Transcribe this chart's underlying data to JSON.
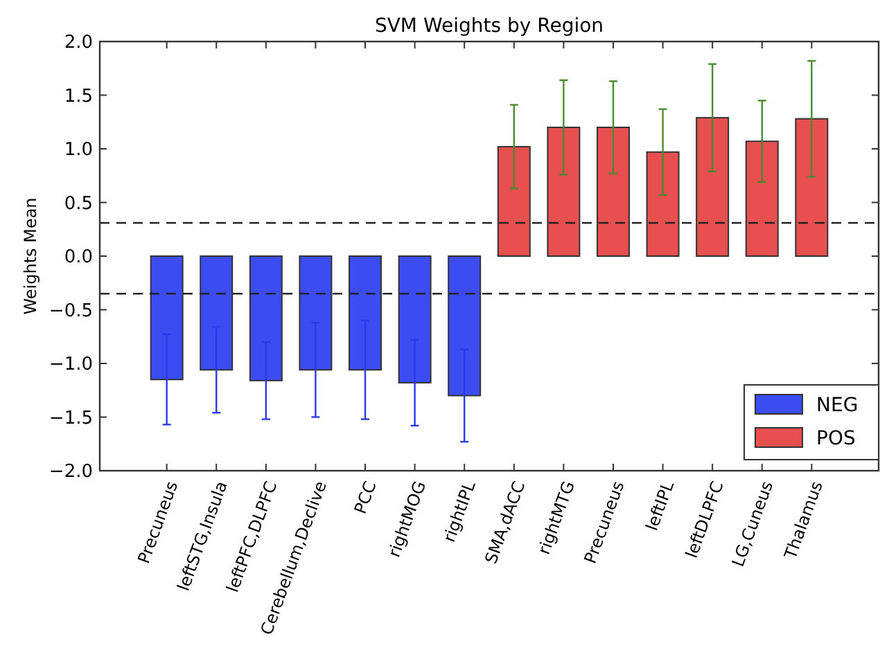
{
  "chart_data": {
    "type": "bar",
    "title": "SVM Weights by Region",
    "ylabel": "Weights Mean",
    "categories": [
      "Precuneus",
      "leftSTG,Insula",
      "leftPFC,DLPFC",
      "Cerebellum,Declive",
      "PCC",
      "rightMOG",
      "rightIPL",
      "SMA,dACC",
      "rightMTG",
      "Precuneus",
      "leftIPL",
      "leftDLPFC",
      "LG,Cuneus",
      "Thalamus"
    ],
    "series": [
      {
        "name": "NEG",
        "color": "#3b4cf2",
        "values": [
          -1.15,
          -1.06,
          -1.16,
          -1.06,
          -1.06,
          -1.18,
          -1.3,
          null,
          null,
          null,
          null,
          null,
          null,
          null
        ],
        "errors": [
          0.42,
          0.4,
          0.36,
          0.44,
          0.46,
          0.4,
          0.43,
          null,
          null,
          null,
          null,
          null,
          null,
          null
        ]
      },
      {
        "name": "POS",
        "color": "#e8504f",
        "values": [
          null,
          null,
          null,
          null,
          null,
          null,
          null,
          1.02,
          1.2,
          1.2,
          0.97,
          1.29,
          1.07,
          1.28
        ],
        "errors": [
          null,
          null,
          null,
          null,
          null,
          null,
          null,
          0.39,
          0.44,
          0.43,
          0.4,
          0.5,
          0.38,
          0.54
        ]
      }
    ],
    "ylim": [
      -2,
      2
    ],
    "yticks": [
      {
        "value": -2,
        "label": "−2.0"
      },
      {
        "value": -1.5,
        "label": "−1.5"
      },
      {
        "value": -1,
        "label": "−1.0"
      },
      {
        "value": -0.5,
        "label": "−0.5"
      },
      {
        "value": 0,
        "label": "0.0"
      },
      {
        "value": 0.5,
        "label": "0.5"
      },
      {
        "value": 1,
        "label": "1.0"
      },
      {
        "value": 1.5,
        "label": "1.5"
      },
      {
        "value": 2,
        "label": "2.0"
      }
    ],
    "ref_lines": [
      {
        "axis": "y",
        "value": 0.31,
        "line_style": "dashed"
      },
      {
        "axis": "y",
        "value": -0.35,
        "line_style": "dashed"
      }
    ],
    "legend": "bottom right",
    "grid": false
  }
}
